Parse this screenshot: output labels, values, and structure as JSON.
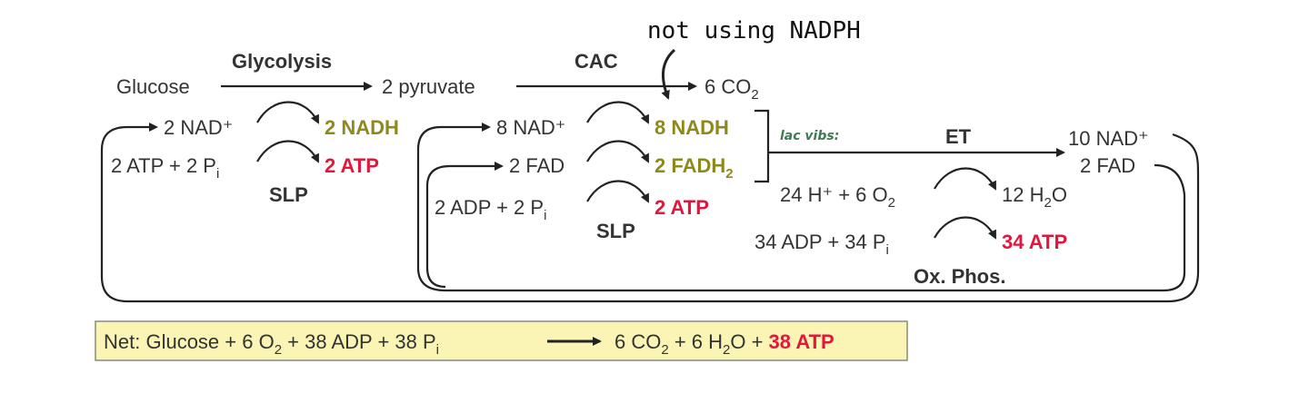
{
  "annotation_top": "not using NADPH",
  "annotation_side": "lac vibs:",
  "glycolysis": {
    "label": "Glycolysis",
    "substrate": "Glucose",
    "product": "2 pyruvate",
    "nad_in": "2 NAD⁺",
    "nadh_out": "2 NADH",
    "atp_in": "2 ATP + 2 P",
    "atp_in_sub": "i",
    "atp_out": "2 ATP",
    "slp": "SLP"
  },
  "cac": {
    "label": "CAC",
    "product": "6 CO",
    "product_sub": "2",
    "nad_in": "8 NAD⁺",
    "nadh_out": "8 NADH",
    "fad_in": "2 FAD",
    "fadh_out": "2 FADH",
    "fadh_sub": "2",
    "adp_in": "2 ADP + 2 P",
    "adp_sub": "i",
    "atp_out": "2 ATP",
    "slp": "SLP"
  },
  "et": {
    "label": "ET",
    "nad_out": "10 NAD⁺",
    "fad_out": "2 FAD",
    "o2_in": "24 H⁺ + 6 O",
    "o2_sub": "2",
    "water_out": "12 H",
    "water_sub": "2",
    "water_tail": "O",
    "adp_in": "34 ADP + 34 P",
    "adp_sub": "i",
    "atp_out": "34 ATP",
    "oxphos": "Ox. Phos."
  },
  "net": {
    "prefix": "Net: Glucose + 6 O",
    "s1": "2",
    "mid": " + 38 ADP + 38 P",
    "s2": "i",
    "right": "6 CO",
    "s3": "2",
    "right2": " + 6 H",
    "s4": "2",
    "right3": "O + ",
    "atp": "38 ATP"
  },
  "colors": {
    "nadh": "#8c8a1c",
    "atp": "#e3173e",
    "net_box": "#faf5b4",
    "annotation": "#3f7a55"
  }
}
